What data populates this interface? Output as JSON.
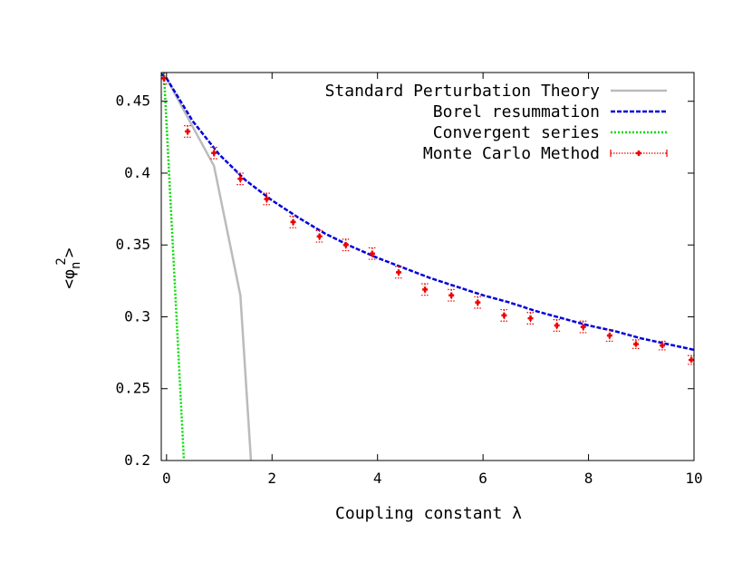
{
  "chart_data": {
    "type": "line",
    "xlabel": "Coupling constant λ",
    "ylabel": {
      "open": "<",
      "symbol": "φ",
      "subscript": "n",
      "superscript": "2",
      "close": ">"
    },
    "xlim": [
      -0.1,
      10
    ],
    "ylim": [
      0.2,
      0.47
    ],
    "x_ticks": [
      0,
      2,
      4,
      6,
      8,
      10
    ],
    "y_ticks": [
      0.2,
      0.25,
      0.3,
      0.35,
      0.4,
      0.45
    ],
    "x_tick_labels": [
      "0",
      "2",
      "4",
      "6",
      "8",
      "10"
    ],
    "y_tick_labels": [
      "0.2",
      "0.25",
      "0.3",
      "0.35",
      "0.4",
      "0.45"
    ],
    "grid": false,
    "legend_position": "top-right",
    "series": [
      {
        "name": "Standard Perturbation Theory",
        "style": "solid",
        "color": "#bbbbbb",
        "x": [
          0.0,
          0.5,
          0.9,
          1.4,
          1.6
        ],
        "y": [
          0.466,
          0.432,
          0.405,
          0.315,
          0.2
        ]
      },
      {
        "name": "Borel resummation",
        "style": "dashed",
        "color": "#0000dd",
        "x": [
          -0.1,
          0.0,
          0.5,
          1.0,
          1.5,
          2.0,
          2.5,
          3.0,
          3.5,
          4.0,
          4.5,
          5.0,
          5.5,
          6.0,
          6.5,
          7.0,
          7.5,
          8.0,
          8.5,
          9.0,
          9.5,
          10.0
        ],
        "y": [
          0.469,
          0.466,
          0.436,
          0.413,
          0.395,
          0.381,
          0.369,
          0.358,
          0.349,
          0.341,
          0.334,
          0.327,
          0.321,
          0.315,
          0.31,
          0.304,
          0.299,
          0.294,
          0.29,
          0.285,
          0.281,
          0.277
        ]
      },
      {
        "name": "Convergent series",
        "style": "dotted",
        "color": "#00dd00",
        "x": [
          -0.05,
          0.33
        ],
        "y": [
          0.47,
          0.2
        ]
      },
      {
        "name": "Monte Carlo Method",
        "style": "errorbar",
        "color": "#ee0000",
        "x": [
          -0.05,
          0.4,
          0.9,
          1.4,
          1.9,
          2.4,
          2.9,
          3.4,
          3.9,
          4.4,
          4.9,
          5.4,
          5.9,
          6.4,
          6.9,
          7.4,
          7.9,
          8.4,
          8.9,
          9.4,
          9.95
        ],
        "y": [
          0.466,
          0.429,
          0.414,
          0.396,
          0.382,
          0.366,
          0.356,
          0.35,
          0.344,
          0.331,
          0.319,
          0.315,
          0.31,
          0.301,
          0.299,
          0.294,
          0.293,
          0.287,
          0.281,
          0.28,
          0.27
        ],
        "yerr": [
          0.004,
          0.004,
          0.004,
          0.004,
          0.004,
          0.004,
          0.004,
          0.004,
          0.004,
          0.004,
          0.004,
          0.004,
          0.004,
          0.004,
          0.004,
          0.004,
          0.004,
          0.004,
          0.003,
          0.003,
          0.003
        ]
      }
    ]
  }
}
